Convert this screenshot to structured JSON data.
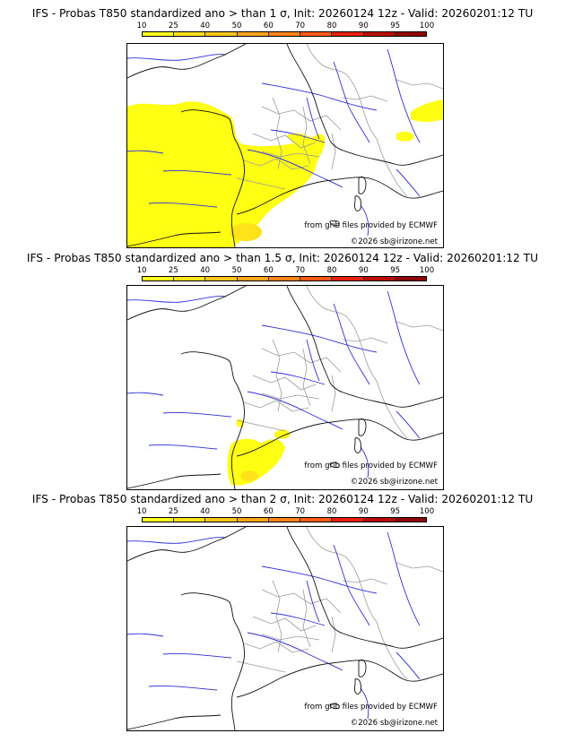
{
  "panels": [
    {
      "title": "IFS - Probas T850  standardized ano > than 1 σ, Init: 20260124 12z - Valid: 20260201:12 TU",
      "threshold_sigma": 1
    },
    {
      "title": "IFS - Probas T850  standardized ano > than 1.5 σ, Init: 20260124 12z - Valid: 20260201:12 TU",
      "threshold_sigma": 1.5
    },
    {
      "title": "IFS - Probas T850  standardized ano > than 2 σ, Init: 20260124 12z - Valid: 20260201:12 TU",
      "threshold_sigma": 2
    }
  ],
  "colorbar": {
    "labels": [
      "10",
      "25",
      "40",
      "50",
      "60",
      "70",
      "80",
      "90",
      "95",
      "100"
    ],
    "colors": [
      "#ffff1f",
      "#ffe21a",
      "#ffc61a",
      "#ffa618",
      "#ff8415",
      "#ff5a12",
      "#e8200e",
      "#bb0c0a",
      "#8f0807"
    ]
  },
  "credits": {
    "source": "from grib files provided by ECMWF",
    "copyright": "©2026 sb@irizone.net"
  },
  "colors": {
    "prob_fill": "#ffff14",
    "coast": "#111111",
    "rivers": "#2e2edc",
    "borders": "#9a9a9a"
  }
}
